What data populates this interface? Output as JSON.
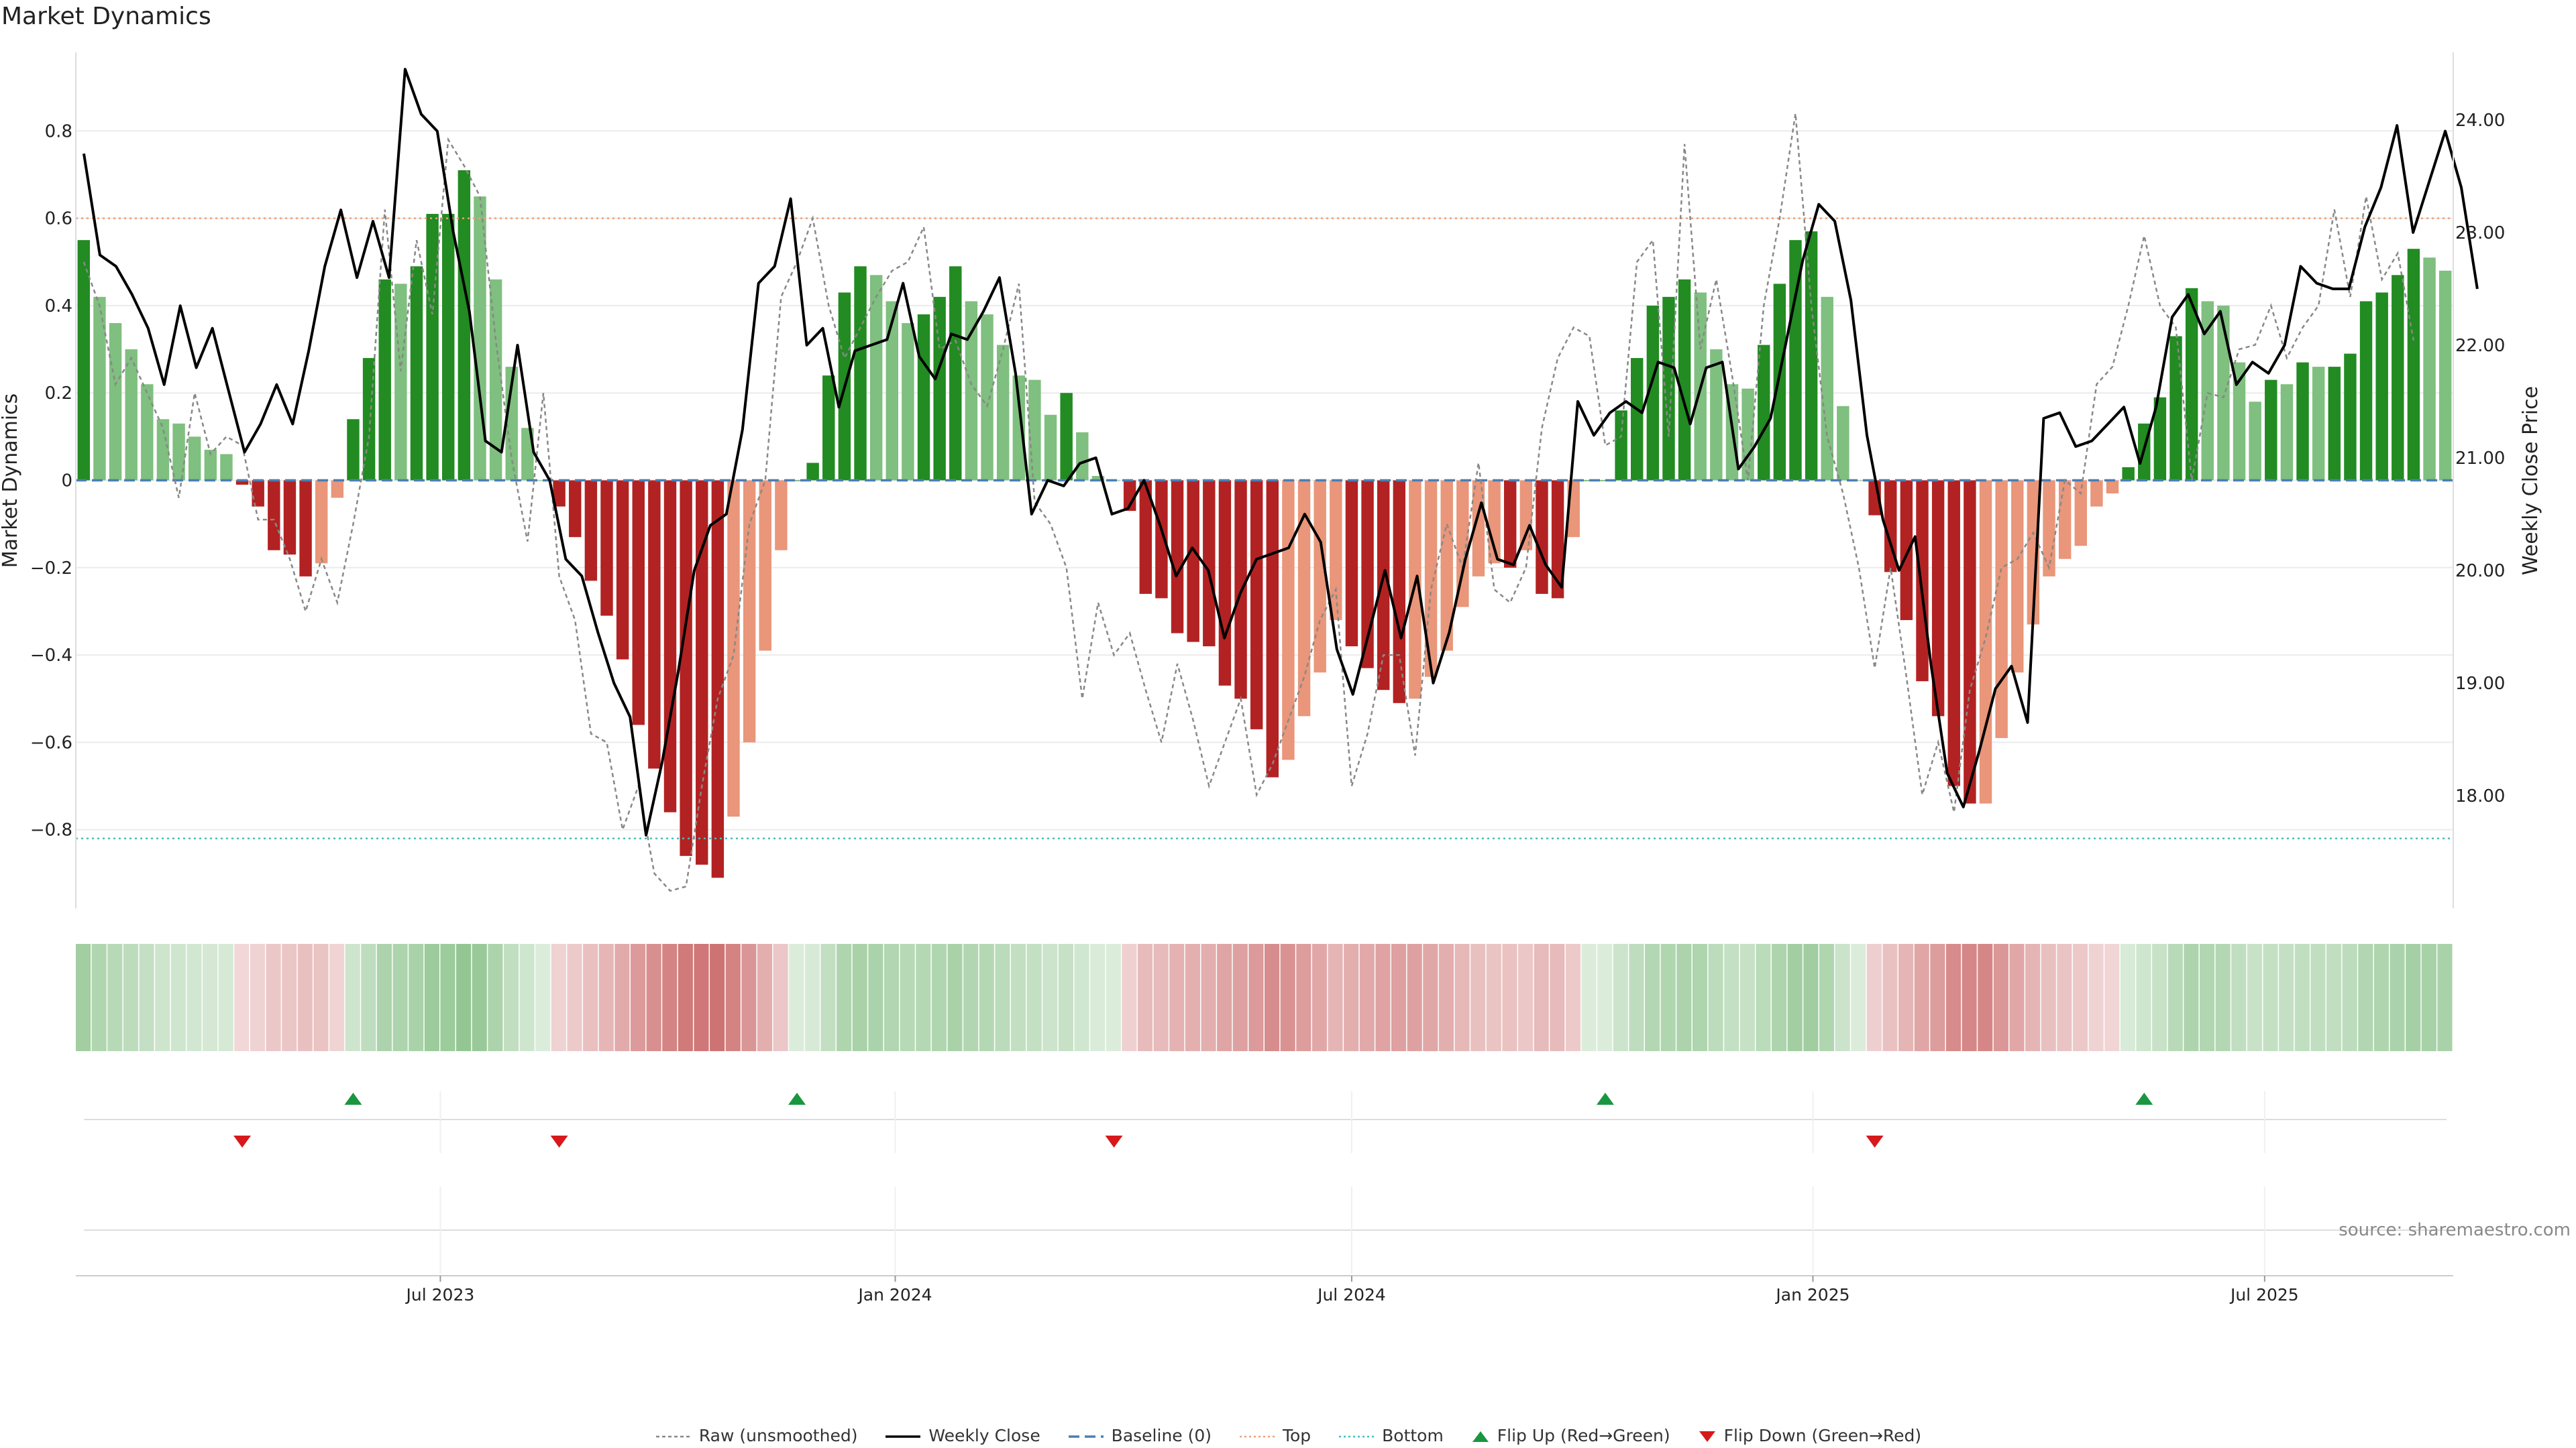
{
  "page": {
    "title": "Market Dynamics",
    "source": "source: sharemaestro.com"
  },
  "chart_data": {
    "type": "bar",
    "title": "Market Dynamics",
    "ylabel_left": "Market Dynamics",
    "ylabel_right": "Weekly Close Price",
    "ylim_left": [
      -0.98,
      0.98
    ],
    "ylim_right": [
      17.0,
      24.6
    ],
    "yticks_left": [
      {
        "v": 0.8,
        "label": "0.8"
      },
      {
        "v": 0.6,
        "label": "0.6"
      },
      {
        "v": 0.4,
        "label": "0.4"
      },
      {
        "v": 0.2,
        "label": "0.2"
      },
      {
        "v": 0,
        "label": "0"
      },
      {
        "v": -0.2,
        "label": "−0.2"
      },
      {
        "v": -0.4,
        "label": "−0.4"
      },
      {
        "v": -0.6,
        "label": "−0.6"
      },
      {
        "v": -0.8,
        "label": "−0.8"
      }
    ],
    "yticks_right": [
      {
        "v": 24,
        "label": "24.00"
      },
      {
        "v": 23,
        "label": "23.00"
      },
      {
        "v": 22,
        "label": "22.00"
      },
      {
        "v": 21,
        "label": "21.00"
      },
      {
        "v": 20,
        "label": "20.00"
      },
      {
        "v": 19,
        "label": "19.00"
      },
      {
        "v": 18,
        "label": "18.00"
      }
    ],
    "xticks": [
      {
        "index": 22.5,
        "label": "Jul 2023"
      },
      {
        "index": 51.2,
        "label": "Jan 2024"
      },
      {
        "index": 80.0,
        "label": "Jul 2024"
      },
      {
        "index": 109.1,
        "label": "Jan 2025"
      },
      {
        "index": 137.6,
        "label": "Jul 2025"
      }
    ],
    "top_level": 0.6,
    "bottom_level": -0.82,
    "baseline": 0,
    "values": [
      0.55,
      0.42,
      0.36,
      0.3,
      0.22,
      0.14,
      0.13,
      0.1,
      0.07,
      0.06,
      -0.01,
      -0.06,
      -0.16,
      -0.17,
      -0.22,
      -0.19,
      -0.04,
      0.14,
      0.28,
      0.46,
      0.45,
      0.49,
      0.61,
      0.61,
      0.71,
      0.65,
      0.46,
      0.26,
      0.12,
      0.0,
      -0.06,
      -0.13,
      -0.23,
      -0.31,
      -0.41,
      -0.56,
      -0.66,
      -0.76,
      -0.86,
      -0.88,
      -0.91,
      -0.77,
      -0.6,
      -0.39,
      -0.16,
      0.0,
      0.04,
      0.24,
      0.43,
      0.49,
      0.47,
      0.41,
      0.36,
      0.38,
      0.42,
      0.49,
      0.41,
      0.38,
      0.31,
      0.24,
      0.23,
      0.15,
      0.2,
      0.11,
      0.01,
      0.0,
      -0.07,
      -0.26,
      -0.27,
      -0.35,
      -0.37,
      -0.38,
      -0.47,
      -0.5,
      -0.57,
      -0.68,
      -0.64,
      -0.54,
      -0.44,
      -0.32,
      -0.38,
      -0.43,
      -0.48,
      -0.51,
      -0.5,
      -0.45,
      -0.39,
      -0.29,
      -0.22,
      -0.19,
      -0.2,
      -0.16,
      -0.26,
      -0.27,
      -0.13,
      0.0,
      0.0,
      0.16,
      0.28,
      0.4,
      0.42,
      0.46,
      0.43,
      0.3,
      0.22,
      0.21,
      0.31,
      0.45,
      0.55,
      0.57,
      0.42,
      0.17,
      0.0,
      -0.08,
      -0.21,
      -0.32,
      -0.46,
      -0.54,
      -0.7,
      -0.74,
      -0.74,
      -0.59,
      -0.44,
      -0.33,
      -0.22,
      -0.18,
      -0.15,
      -0.06,
      -0.03,
      0.03,
      0.13,
      0.19,
      0.33,
      0.44,
      0.41,
      0.4,
      0.27,
      0.18,
      0.23,
      0.22,
      0.27,
      0.26,
      0.26,
      0.29,
      0.41,
      0.43,
      0.47,
      0.53,
      0.51,
      0.48
    ],
    "raw_values": [
      0.5,
      0.4,
      0.22,
      0.28,
      0.2,
      0.12,
      -0.04,
      0.2,
      0.06,
      0.1,
      0.08,
      -0.09,
      -0.09,
      -0.18,
      -0.3,
      -0.18,
      -0.28,
      -0.1,
      0.1,
      0.62,
      0.25,
      0.55,
      0.38,
      0.78,
      0.72,
      0.65,
      0.32,
      0.05,
      -0.14,
      0.2,
      -0.22,
      -0.32,
      -0.58,
      -0.6,
      -0.8,
      -0.7,
      -0.9,
      -0.94,
      -0.93,
      -0.7,
      -0.5,
      -0.4,
      -0.1,
      0.0,
      0.42,
      0.5,
      0.6,
      0.4,
      0.28,
      0.35,
      0.42,
      0.48,
      0.5,
      0.58,
      0.3,
      0.32,
      0.22,
      0.17,
      0.3,
      0.45,
      -0.05,
      -0.1,
      -0.2,
      -0.5,
      -0.28,
      -0.4,
      -0.35,
      -0.48,
      -0.6,
      -0.42,
      -0.55,
      -0.7,
      -0.6,
      -0.5,
      -0.72,
      -0.65,
      -0.55,
      -0.45,
      -0.32,
      -0.25,
      -0.7,
      -0.58,
      -0.4,
      -0.4,
      -0.63,
      -0.25,
      -0.1,
      -0.2,
      0.04,
      -0.25,
      -0.28,
      -0.2,
      0.12,
      0.28,
      0.35,
      0.33,
      0.08,
      0.1,
      0.5,
      0.55,
      0.1,
      0.77,
      0.3,
      0.46,
      0.24,
      0.0,
      0.4,
      0.6,
      0.84,
      0.4,
      0.1,
      -0.03,
      -0.2,
      -0.43,
      -0.2,
      -0.45,
      -0.72,
      -0.6,
      -0.76,
      -0.48,
      -0.36,
      -0.2,
      -0.18,
      -0.12,
      -0.2,
      0.0,
      -0.03,
      0.22,
      0.26,
      0.4,
      0.56,
      0.4,
      0.35,
      0.0,
      0.2,
      0.19,
      0.3,
      0.31,
      0.4,
      0.28,
      0.35,
      0.4,
      0.62,
      0.42,
      0.65,
      0.46,
      0.52,
      0.32
    ],
    "close_x_steps": 148,
    "close": [
      23.7,
      22.8,
      22.7,
      22.45,
      22.15,
      21.65,
      22.35,
      21.8,
      22.15,
      21.6,
      21.05,
      21.3,
      21.65,
      21.3,
      21.95,
      22.7,
      23.2,
      22.6,
      23.1,
      22.6,
      24.45,
      24.05,
      23.9,
      23.0,
      22.3,
      21.15,
      21.05,
      22.0,
      21.05,
      20.8,
      20.1,
      19.95,
      19.45,
      19.0,
      18.7,
      17.65,
      18.3,
      19.1,
      20.0,
      20.4,
      20.5,
      21.25,
      22.55,
      22.7,
      23.3,
      22.0,
      22.15,
      21.45,
      21.95,
      22.0,
      22.05,
      22.55,
      21.9,
      21.7,
      22.1,
      22.05,
      22.3,
      22.6,
      21.75,
      20.5,
      20.8,
      20.75,
      20.95,
      21.0,
      20.5,
      20.55,
      20.8,
      20.4,
      19.95,
      20.2,
      20.0,
      19.4,
      19.8,
      20.1,
      20.15,
      20.2,
      20.5,
      20.25,
      19.3,
      18.9,
      19.45,
      20.0,
      19.4,
      19.95,
      19.0,
      19.45,
      20.1,
      20.6,
      20.1,
      20.05,
      20.4,
      20.05,
      19.85,
      21.5,
      21.2,
      21.4,
      21.5,
      21.4,
      21.85,
      21.8,
      21.3,
      21.8,
      21.85,
      20.9,
      21.1,
      21.35,
      22.05,
      22.75,
      23.25,
      23.1,
      22.4,
      21.2,
      20.45,
      20.0,
      20.3,
      19.15,
      18.2,
      17.9,
      18.4,
      18.95,
      19.15,
      18.65,
      21.35,
      21.4,
      21.1,
      21.15,
      21.3,
      21.45,
      20.95,
      21.45,
      22.25,
      22.45,
      22.1,
      22.3,
      21.65,
      21.85,
      21.75,
      22.0,
      22.7,
      22.55,
      22.5,
      22.5,
      23.05,
      23.4,
      23.95,
      23.0,
      23.45,
      23.9,
      23.4,
      22.5
    ],
    "flip_up_indices": [
      17,
      45,
      96,
      130
    ],
    "flip_down_indices": [
      10,
      30,
      65,
      113
    ],
    "legend": {
      "raw": "Raw (unsmoothed)",
      "close": "Weekly Close",
      "baseline": "Baseline (0)",
      "top": "Top",
      "bottom": "Bottom",
      "flip_up": "Flip Up (Red→Green)",
      "flip_down": "Flip Down (Green→Red)"
    }
  },
  "colors": {
    "dark_green": "#228B22",
    "light_green": "#7fbf7f",
    "dark_red": "#b22222",
    "light_red": "#e9967a",
    "close_line": "#000000",
    "raw_line": "#888888",
    "baseline": "#4a7fb5",
    "top": "#f0a070",
    "bottom": "#40bfbf",
    "flip_up": "#1a9641",
    "flip_down": "#d7191c",
    "grid": "#ebebeb"
  }
}
